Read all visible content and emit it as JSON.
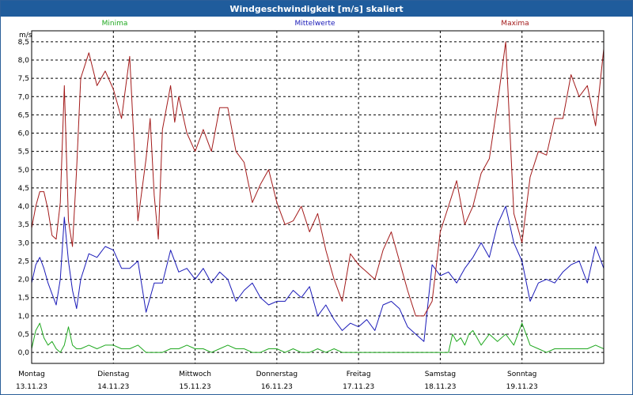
{
  "window": {
    "title": "Windgeschwindigkeit [m/s] skaliert"
  },
  "colors": {
    "min": "#1fa81f",
    "mean": "#1a1ab8",
    "max": "#a31a1a",
    "grid": "#000000",
    "title_bg": "#1f5c9c"
  },
  "chart_data": {
    "type": "line",
    "title": "Windgeschwindigkeit [m/s] skaliert",
    "ylabel": "m/s",
    "ylim": [
      -0.3,
      8.8
    ],
    "xlim": [
      0,
      7
    ],
    "ytick_labels": [
      "0,0",
      "0,5",
      "1,0",
      "1,5",
      "2,0",
      "2,5",
      "3,0",
      "3,5",
      "4,0",
      "4,5",
      "5,0",
      "5,5",
      "6,0",
      "6,5",
      "7,0",
      "7,5",
      "8,0",
      "8,5"
    ],
    "ytick_values": [
      0,
      0.5,
      1,
      1.5,
      2,
      2.5,
      3,
      3.5,
      4,
      4.5,
      5,
      5.5,
      6,
      6.5,
      7,
      7.5,
      8,
      8.5
    ],
    "x_categories": [
      {
        "day": "Montag",
        "date": "13.11.23"
      },
      {
        "day": "Dienstag",
        "date": "14.11.23"
      },
      {
        "day": "Mittwoch",
        "date": "15.11.23"
      },
      {
        "day": "Donnerstag",
        "date": "16.11.23"
      },
      {
        "day": "Freitag",
        "date": "17.11.23"
      },
      {
        "day": "Samstag",
        "date": "18.11.23"
      },
      {
        "day": "Sonntag",
        "date": "19.11.23"
      }
    ],
    "grid": true,
    "series": [
      {
        "name": "Minima",
        "key": "min",
        "x": [
          0,
          0.05,
          0.1,
          0.15,
          0.2,
          0.25,
          0.3,
          0.35,
          0.4,
          0.45,
          0.5,
          0.55,
          0.6,
          0.7,
          0.8,
          0.9,
          1.0,
          1.1,
          1.2,
          1.3,
          1.4,
          1.5,
          1.6,
          1.7,
          1.8,
          1.9,
          2.0,
          2.1,
          2.2,
          2.3,
          2.4,
          2.5,
          2.6,
          2.7,
          2.8,
          2.9,
          3.0,
          3.1,
          3.2,
          3.3,
          3.4,
          3.5,
          3.6,
          3.7,
          3.8,
          3.9,
          4.0,
          4.5,
          5.0,
          5.1,
          5.15,
          5.2,
          5.25,
          5.3,
          5.35,
          5.4,
          5.5,
          5.6,
          5.7,
          5.8,
          5.9,
          6.0,
          6.1,
          6.2,
          6.3,
          6.4,
          6.5,
          6.6,
          6.7,
          6.8,
          6.9,
          7.0
        ],
        "y": [
          0.1,
          0.6,
          0.8,
          0.4,
          0.2,
          0.3,
          0.1,
          0.0,
          0.2,
          0.7,
          0.2,
          0.1,
          0.1,
          0.2,
          0.1,
          0.2,
          0.2,
          0.1,
          0.1,
          0.2,
          0.0,
          0.0,
          0.0,
          0.1,
          0.1,
          0.2,
          0.1,
          0.1,
          0.0,
          0.1,
          0.2,
          0.1,
          0.1,
          0.0,
          0.0,
          0.1,
          0.1,
          0.0,
          0.1,
          0.0,
          0.0,
          0.1,
          0.0,
          0.1,
          0.0,
          0.0,
          0.0,
          0.0,
          0.0,
          0.0,
          0.5,
          0.3,
          0.4,
          0.2,
          0.5,
          0.6,
          0.2,
          0.5,
          0.3,
          0.5,
          0.2,
          0.8,
          0.2,
          0.1,
          0.0,
          0.1,
          0.1,
          0.1,
          0.1,
          0.1,
          0.2,
          0.1
        ]
      },
      {
        "name": "Mittelwerte",
        "key": "mean",
        "x": [
          0,
          0.05,
          0.1,
          0.15,
          0.2,
          0.25,
          0.3,
          0.35,
          0.4,
          0.45,
          0.5,
          0.55,
          0.6,
          0.7,
          0.8,
          0.9,
          1.0,
          1.1,
          1.2,
          1.3,
          1.4,
          1.5,
          1.6,
          1.7,
          1.8,
          1.9,
          2.0,
          2.1,
          2.2,
          2.3,
          2.4,
          2.5,
          2.6,
          2.7,
          2.8,
          2.9,
          3.0,
          3.1,
          3.2,
          3.3,
          3.4,
          3.5,
          3.6,
          3.7,
          3.8,
          3.9,
          4.0,
          4.1,
          4.2,
          4.3,
          4.4,
          4.5,
          4.6,
          4.7,
          4.8,
          4.9,
          5.0,
          5.1,
          5.2,
          5.3,
          5.4,
          5.5,
          5.6,
          5.7,
          5.8,
          5.9,
          6.0,
          6.1,
          6.2,
          6.3,
          6.4,
          6.5,
          6.6,
          6.7,
          6.8,
          6.9,
          7.0
        ],
        "y": [
          1.9,
          2.4,
          2.6,
          2.3,
          1.9,
          1.6,
          1.3,
          2.0,
          3.7,
          2.5,
          1.7,
          1.2,
          2.0,
          2.7,
          2.6,
          2.9,
          2.8,
          2.3,
          2.3,
          2.5,
          1.1,
          1.9,
          1.9,
          2.8,
          2.2,
          2.3,
          2.0,
          2.3,
          1.9,
          2.2,
          2.0,
          1.4,
          1.7,
          1.9,
          1.5,
          1.3,
          1.4,
          1.4,
          1.7,
          1.5,
          1.8,
          1.0,
          1.3,
          0.9,
          0.6,
          0.8,
          0.7,
          0.9,
          0.6,
          1.3,
          1.4,
          1.2,
          0.7,
          0.5,
          0.3,
          2.4,
          2.1,
          2.2,
          1.9,
          2.3,
          2.6,
          3.0,
          2.6,
          3.5,
          4.0,
          3.0,
          2.5,
          1.4,
          1.9,
          2.0,
          1.9,
          2.2,
          2.4,
          2.5,
          1.9,
          2.9,
          2.3
        ]
      },
      {
        "name": "Maxima",
        "key": "max",
        "x": [
          0,
          0.05,
          0.1,
          0.15,
          0.2,
          0.25,
          0.3,
          0.35,
          0.4,
          0.45,
          0.5,
          0.55,
          0.6,
          0.7,
          0.8,
          0.9,
          1.0,
          1.1,
          1.2,
          1.3,
          1.4,
          1.45,
          1.5,
          1.55,
          1.6,
          1.7,
          1.75,
          1.8,
          1.9,
          2.0,
          2.1,
          2.2,
          2.3,
          2.4,
          2.5,
          2.6,
          2.7,
          2.8,
          2.9,
          3.0,
          3.1,
          3.2,
          3.3,
          3.4,
          3.5,
          3.6,
          3.7,
          3.8,
          3.9,
          4.0,
          4.1,
          4.2,
          4.3,
          4.4,
          4.5,
          4.6,
          4.7,
          4.8,
          4.9,
          5.0,
          5.1,
          5.2,
          5.3,
          5.4,
          5.5,
          5.6,
          5.7,
          5.8,
          5.9,
          6.0,
          6.1,
          6.2,
          6.3,
          6.4,
          6.5,
          6.6,
          6.7,
          6.8,
          6.9,
          7.0
        ],
        "y": [
          3.4,
          4.0,
          4.4,
          4.4,
          3.9,
          3.2,
          3.1,
          4.1,
          7.3,
          3.6,
          2.9,
          5.0,
          7.5,
          8.2,
          7.3,
          7.7,
          7.2,
          6.4,
          8.1,
          3.6,
          5.3,
          6.4,
          4.3,
          3.1,
          6.1,
          7.3,
          6.3,
          7.0,
          6.0,
          5.5,
          6.1,
          5.5,
          6.7,
          6.7,
          5.5,
          5.2,
          4.1,
          4.6,
          5.0,
          4.1,
          3.5,
          3.6,
          4.0,
          3.3,
          3.8,
          2.8,
          2.0,
          1.4,
          2.7,
          2.4,
          2.2,
          2.0,
          2.8,
          3.3,
          2.5,
          1.7,
          1.0,
          1.0,
          1.4,
          3.3,
          4.0,
          4.7,
          3.5,
          4.0,
          4.9,
          5.3,
          6.8,
          8.5,
          3.8,
          3.0,
          4.8,
          5.5,
          5.4,
          6.4,
          6.4,
          7.6,
          7.0,
          7.3,
          6.2,
          8.3
        ]
      }
    ]
  }
}
